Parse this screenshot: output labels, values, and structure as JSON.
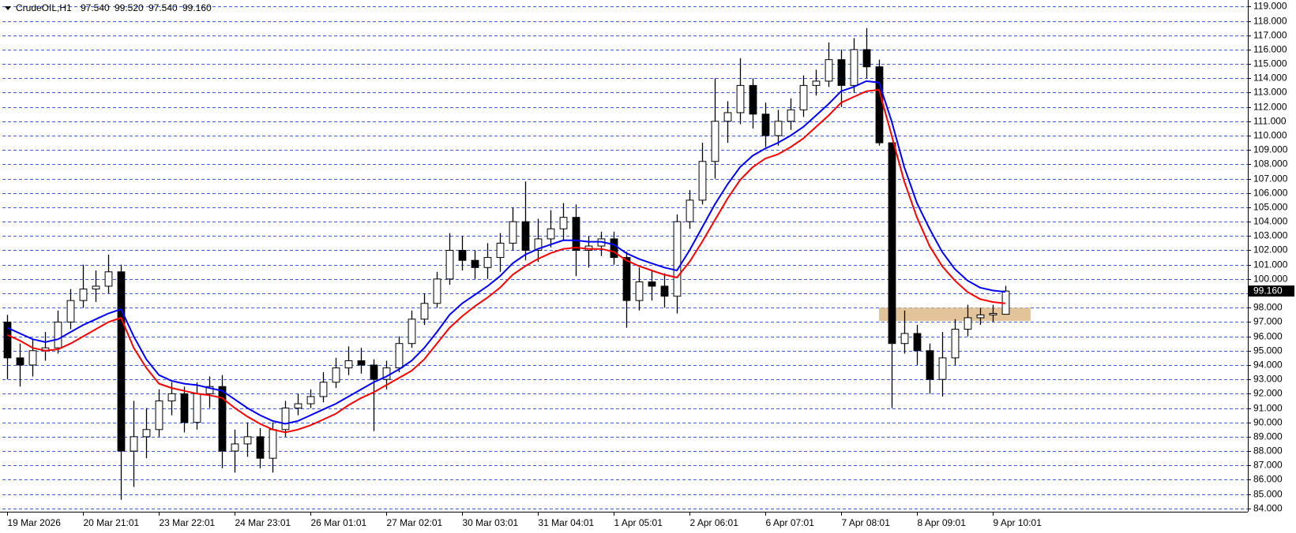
{
  "header": {
    "symbol": "CrudeOIL,H1",
    "ohlc": [
      "97.540",
      "99.520",
      "97.540",
      "99.160"
    ]
  },
  "chart_data": {
    "type": "candlestick",
    "xlim": [
      -0.4,
      98.2
    ],
    "ylim": [
      83.77,
      119.46
    ],
    "xticks": [
      {
        "value": 0,
        "label": "19 Mar 2026"
      },
      {
        "value": 6,
        "label": "20 Mar 21:01"
      },
      {
        "value": 12,
        "label": "23 Mar 22:01"
      },
      {
        "value": 18,
        "label": "24 Mar 23:01"
      },
      {
        "value": 24,
        "label": "26 Mar 01:01"
      },
      {
        "value": 30,
        "label": "27 Mar 02:01"
      },
      {
        "value": 36,
        "label": "30 Mar 03:01"
      },
      {
        "value": 42,
        "label": "31 Mar 04:01"
      },
      {
        "value": 48,
        "label": "1 Apr 05:01"
      },
      {
        "value": 54,
        "label": "2 Apr 06:01"
      },
      {
        "value": 60,
        "label": "6 Apr 07:01"
      },
      {
        "value": 66,
        "label": "7 Apr 08:01"
      },
      {
        "value": 72,
        "label": "8 Apr 09:01"
      },
      {
        "value": 78,
        "label": "9 Apr 10:01"
      }
    ],
    "yticks": [
      {
        "value": 84,
        "label": "84.000"
      },
      {
        "value": 85,
        "label": "85.000"
      },
      {
        "value": 86,
        "label": "86.000"
      },
      {
        "value": 87,
        "label": "87.000"
      },
      {
        "value": 88,
        "label": "88.000"
      },
      {
        "value": 89,
        "label": "89.000"
      },
      {
        "value": 90,
        "label": "90.000"
      },
      {
        "value": 91,
        "label": "91.000"
      },
      {
        "value": 92,
        "label": "92.000"
      },
      {
        "value": 93,
        "label": "93.000"
      },
      {
        "value": 94,
        "label": "94.000"
      },
      {
        "value": 95,
        "label": "95.000"
      },
      {
        "value": 96,
        "label": "96.000"
      },
      {
        "value": 97,
        "label": "97.000"
      },
      {
        "value": 98,
        "label": "98.000"
      },
      {
        "value": 99,
        "label": "99.000"
      },
      {
        "value": 100,
        "label": "100.000"
      },
      {
        "value": 101,
        "label": "101.000"
      },
      {
        "value": 102,
        "label": "102.000"
      },
      {
        "value": 103,
        "label": "103.000"
      },
      {
        "value": 104,
        "label": "104.000"
      },
      {
        "value": 105,
        "label": "105.000"
      },
      {
        "value": 106,
        "label": "106.000"
      },
      {
        "value": 107,
        "label": "107.000"
      },
      {
        "value": 108,
        "label": "108.000"
      },
      {
        "value": 109,
        "label": "109.000"
      },
      {
        "value": 110,
        "label": "110.000"
      },
      {
        "value": 111,
        "label": "111.000"
      },
      {
        "value": 112,
        "label": "112.000"
      },
      {
        "value": 113,
        "label": "113.000"
      },
      {
        "value": 114,
        "label": "114.000"
      },
      {
        "value": 115,
        "label": "115.000"
      },
      {
        "value": 116,
        "label": "116.000"
      },
      {
        "value": 117,
        "label": "117.000"
      },
      {
        "value": 118,
        "label": "118.000"
      },
      {
        "value": 119,
        "label": "119.000"
      }
    ],
    "grid": true,
    "grid_color": "#3b5bd8",
    "candle_color": "#000000",
    "current_price": {
      "value": 99.16,
      "label": "99.160"
    },
    "zone": {
      "x": [
        69.0,
        81.0
      ],
      "y": [
        97.07,
        98.0
      ],
      "color": "#deb887"
    },
    "open": [
      97.0,
      94.5,
      94.0,
      95.0,
      95.2,
      97.0,
      98.5,
      99.3,
      99.5,
      100.5,
      88.0,
      89.0,
      89.5,
      91.5,
      92.0,
      90.0,
      92.0,
      92.5,
      88.0,
      88.5,
      89.0,
      87.5,
      89.5,
      91.0,
      91.3,
      91.8,
      92.8,
      93.8,
      94.3,
      94.0,
      93.0,
      93.8,
      95.5,
      97.2,
      98.3,
      100.0,
      102.0,
      101.3,
      100.8,
      101.5,
      102.5,
      104.0,
      102.0,
      102.8,
      103.5,
      104.3,
      102.0,
      102.3,
      102.8,
      101.5,
      98.5,
      99.8,
      99.5,
      98.8,
      104.0,
      105.5,
      108.2,
      111.0,
      111.6,
      113.5,
      111.5,
      110.0,
      111.0,
      111.8,
      113.5,
      113.8,
      115.3,
      113.5,
      116.0,
      114.8,
      109.5,
      95.5,
      96.2,
      95.0,
      93.0,
      94.5,
      96.5,
      97.3,
      97.5,
      97.54
    ],
    "high": [
      97.5,
      95.5,
      95.8,
      96.3,
      97.8,
      99.3,
      101.0,
      100.6,
      101.7,
      101.0,
      91.5,
      91.0,
      92.3,
      92.8,
      92.5,
      92.8,
      93.2,
      93.3,
      89.5,
      90.0,
      89.6,
      90.0,
      91.5,
      92.0,
      92.3,
      93.5,
      94.5,
      95.3,
      95.2,
      94.4,
      94.3,
      96.0,
      97.8,
      99.0,
      100.5,
      103.2,
      103.0,
      102.0,
      102.5,
      103.2,
      105.0,
      106.8,
      104.2,
      104.8,
      105.3,
      105.2,
      103.0,
      103.3,
      103.3,
      101.9,
      100.8,
      100.6,
      100.4,
      104.5,
      106.2,
      109.5,
      114.0,
      112.4,
      115.4,
      114.0,
      112.3,
      111.8,
      112.6,
      114.2,
      114.6,
      116.5,
      116.0,
      116.8,
      117.5,
      115.3,
      109.5,
      97.8,
      96.8,
      95.5,
      96.3,
      97.2,
      98.2,
      98.0,
      98.2,
      99.52
    ],
    "low": [
      93.0,
      92.5,
      93.2,
      94.3,
      94.8,
      96.5,
      98.0,
      98.4,
      99.0,
      84.6,
      85.5,
      87.5,
      89.0,
      90.5,
      89.3,
      89.5,
      91.0,
      86.8,
      86.5,
      87.6,
      86.8,
      86.5,
      89.0,
      90.5,
      91.0,
      91.4,
      92.4,
      93.3,
      93.4,
      89.4,
      92.3,
      93.5,
      95.2,
      96.8,
      98.0,
      99.6,
      100.6,
      100.0,
      100.0,
      100.5,
      102.0,
      101.3,
      101.2,
      102.2,
      102.7,
      100.2,
      100.8,
      101.6,
      101.0,
      96.6,
      97.8,
      98.5,
      98.0,
      97.6,
      103.5,
      105.2,
      107.0,
      109.5,
      110.8,
      110.5,
      109.2,
      109.3,
      110.4,
      111.3,
      112.8,
      113.4,
      112.0,
      113.0,
      114.0,
      109.3,
      91.0,
      94.8,
      94.0,
      92.0,
      91.8,
      94.0,
      96.0,
      96.8,
      97.0,
      97.54
    ],
    "close": [
      94.5,
      94.0,
      95.0,
      95.2,
      97.0,
      98.5,
      99.3,
      99.5,
      100.5,
      88.0,
      89.0,
      89.5,
      91.5,
      92.0,
      90.0,
      92.0,
      92.5,
      88.0,
      88.5,
      89.0,
      87.5,
      89.5,
      91.0,
      91.3,
      91.8,
      92.8,
      93.8,
      94.3,
      94.0,
      93.0,
      93.8,
      95.5,
      97.2,
      98.3,
      100.0,
      102.0,
      101.3,
      100.8,
      101.5,
      102.5,
      104.0,
      102.0,
      102.8,
      103.5,
      104.3,
      102.0,
      102.3,
      102.8,
      101.5,
      98.5,
      99.8,
      99.5,
      98.8,
      104.0,
      105.5,
      108.2,
      111.0,
      111.6,
      113.5,
      111.5,
      110.0,
      111.0,
      111.8,
      113.5,
      113.8,
      115.3,
      113.5,
      116.0,
      114.8,
      109.5,
      95.5,
      96.2,
      95.0,
      93.0,
      94.5,
      96.5,
      97.3,
      97.5,
      97.6,
      99.16
    ],
    "series": [
      {
        "color": "#0000ff",
        "values": [
          96.6,
          96.2,
          95.8,
          95.6,
          95.8,
          96.3,
          96.8,
          97.2,
          97.6,
          97.9,
          96.0,
          94.4,
          93.3,
          92.9,
          92.7,
          92.6,
          92.4,
          92.2,
          91.6,
          91.0,
          90.5,
          90.1,
          89.9,
          90.1,
          90.5,
          90.9,
          91.3,
          91.8,
          92.3,
          92.8,
          93.2,
          93.7,
          94.3,
          95.2,
          96.3,
          97.5,
          98.3,
          98.9,
          99.5,
          100.2,
          101.1,
          101.7,
          102.1,
          102.4,
          102.7,
          102.7,
          102.6,
          102.6,
          102.4,
          101.8,
          101.4,
          101.1,
          100.8,
          100.6,
          102.0,
          103.6,
          105.2,
          106.6,
          107.8,
          108.6,
          109.1,
          109.5,
          110.0,
          110.6,
          111.4,
          112.2,
          113.1,
          113.4,
          113.8,
          113.7,
          111.0,
          107.8,
          105.3,
          103.5,
          101.9,
          100.7,
          99.9,
          99.4,
          99.2,
          99.1
        ]
      },
      {
        "color": "#ff0000",
        "values": [
          96.1,
          95.7,
          95.2,
          95.0,
          95.1,
          95.5,
          96.0,
          96.5,
          97.0,
          97.3,
          95.2,
          93.8,
          92.7,
          92.4,
          92.2,
          92.0,
          91.9,
          91.7,
          91.0,
          90.4,
          89.9,
          89.5,
          89.3,
          89.5,
          89.8,
          90.2,
          90.6,
          91.2,
          91.7,
          92.1,
          92.6,
          93.1,
          93.6,
          94.4,
          95.5,
          96.6,
          97.4,
          98.1,
          98.7,
          99.4,
          100.3,
          100.9,
          101.4,
          101.8,
          102.1,
          102.2,
          102.1,
          102.1,
          101.9,
          101.3,
          100.9,
          100.6,
          100.3,
          100.1,
          101.2,
          102.6,
          104.1,
          105.6,
          106.9,
          107.8,
          108.4,
          108.7,
          109.2,
          109.8,
          110.6,
          111.4,
          112.3,
          112.7,
          113.1,
          113.2,
          110.0,
          106.8,
          104.3,
          102.3,
          100.9,
          99.9,
          99.1,
          98.6,
          98.4,
          98.3
        ]
      }
    ]
  }
}
